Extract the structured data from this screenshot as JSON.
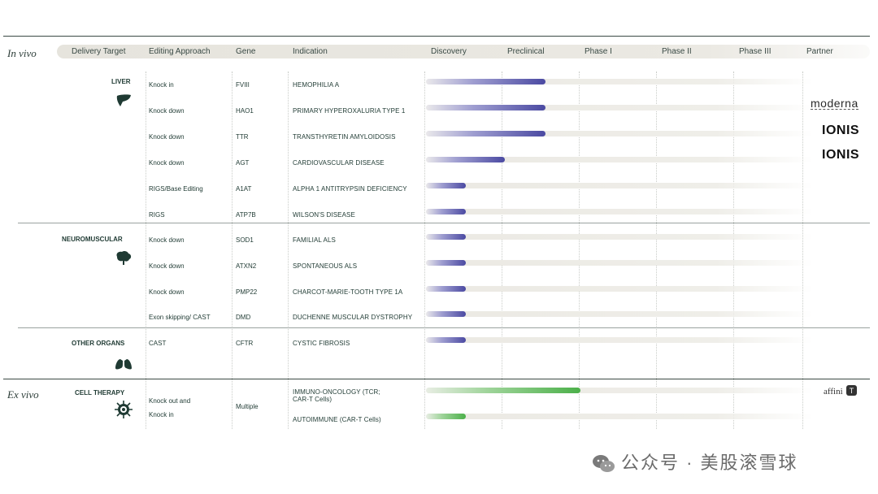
{
  "chart_data": {
    "type": "table",
    "sections": {
      "in_vivo": "In vivo",
      "ex_vivo": "Ex vivo"
    },
    "columns": {
      "delivery_target": "Delivery Target",
      "editing_approach": "Editing Approach",
      "gene": "Gene",
      "indication": "Indication",
      "stages": [
        "Discovery",
        "Preclinical",
        "Phase I",
        "Phase II",
        "Phase III"
      ],
      "partner": "Partner"
    },
    "groups": [
      {
        "name": "LIVER",
        "icon": "liver-icon"
      },
      {
        "name": "NEUROMUSCULAR",
        "icon": "brain-icon"
      },
      {
        "name": "OTHER ORGANS",
        "icon": "lungs-icon"
      },
      {
        "name": "CELL THERAPY",
        "icon": "cell-icon"
      }
    ],
    "programs": [
      {
        "group": "LIVER",
        "approach": "Knock in",
        "gene": "FVIII",
        "indication": "HEMOPHILIA A",
        "progress_stages": 1.55,
        "color": "#4b4aa2"
      },
      {
        "group": "LIVER",
        "approach": "Knock down",
        "gene": "HAO1",
        "indication": "PRIMARY HYPEROXALURIA TYPE 1",
        "progress_stages": 1.55,
        "color": "#4b4aa2"
      },
      {
        "group": "LIVER",
        "approach": "Knock down",
        "gene": "TTR",
        "indication": "TRANSTHYRETIN AMYLOIDOSIS",
        "progress_stages": 1.55,
        "color": "#4b4aa2"
      },
      {
        "group": "LIVER",
        "approach": "Knock down",
        "gene": "AGT",
        "indication": "CARDIOVASCULAR DISEASE",
        "progress_stages": 1.02,
        "color": "#4b4aa2"
      },
      {
        "group": "LIVER",
        "approach": "RIGS/Base Editing",
        "gene": "A1AT",
        "indication": "ALPHA 1 ANTITRYPSIN  DEFICIENCY",
        "progress_stages": 0.52,
        "color": "#4b4aa2"
      },
      {
        "group": "LIVER",
        "approach": "RIGS",
        "gene": "ATP7B",
        "indication": "WILSON'S DISEASE",
        "progress_stages": 0.52,
        "color": "#4b4aa2"
      },
      {
        "group": "NEUROMUSCULAR",
        "approach": "Knock down",
        "gene": "SOD1",
        "indication": "FAMILIAL ALS",
        "progress_stages": 0.52,
        "color": "#4b4aa2"
      },
      {
        "group": "NEUROMUSCULAR",
        "approach": "Knock down",
        "gene": "ATXN2",
        "indication": "SPONTANEOUS ALS",
        "progress_stages": 0.52,
        "color": "#4b4aa2"
      },
      {
        "group": "NEUROMUSCULAR",
        "approach": "Knock down",
        "gene": "PMP22",
        "indication": "CHARCOT-MARIE-TOOTH TYPE 1A",
        "progress_stages": 0.52,
        "color": "#4b4aa2"
      },
      {
        "group": "NEUROMUSCULAR",
        "approach": "Exon skipping/ CAST",
        "gene": "DMD",
        "indication": "DUCHENNE MUSCULAR DYSTROPHY",
        "progress_stages": 0.52,
        "color": "#4b4aa2"
      },
      {
        "group": "OTHER ORGANS",
        "approach": "CAST",
        "gene": "CFTR",
        "indication": "CYSTIC FIBROSIS",
        "progress_stages": 0.52,
        "color": "#4b4aa2"
      },
      {
        "group": "CELL THERAPY",
        "approach": "",
        "gene": "",
        "indication": "IMMUNO-ONCOLOGY (TCR;",
        "indication2": "CAR-T Cells)",
        "progress_stages": 2.0,
        "color": "#4cb04a"
      },
      {
        "group": "CELL THERAPY",
        "approach": "",
        "gene": "",
        "indication": "AUTOIMMUNE (CAR-T Cells)",
        "progress_stages": 0.52,
        "color": "#4cb04a"
      }
    ],
    "cell_therapy_approach": [
      "Knock out and",
      "Knock in"
    ],
    "cell_therapy_gene": "Multiple",
    "partners": [
      "moderna",
      "IONIS",
      "IONIS",
      "affini"
    ]
  },
  "watermark": "公众号 · 美股滚雪球"
}
